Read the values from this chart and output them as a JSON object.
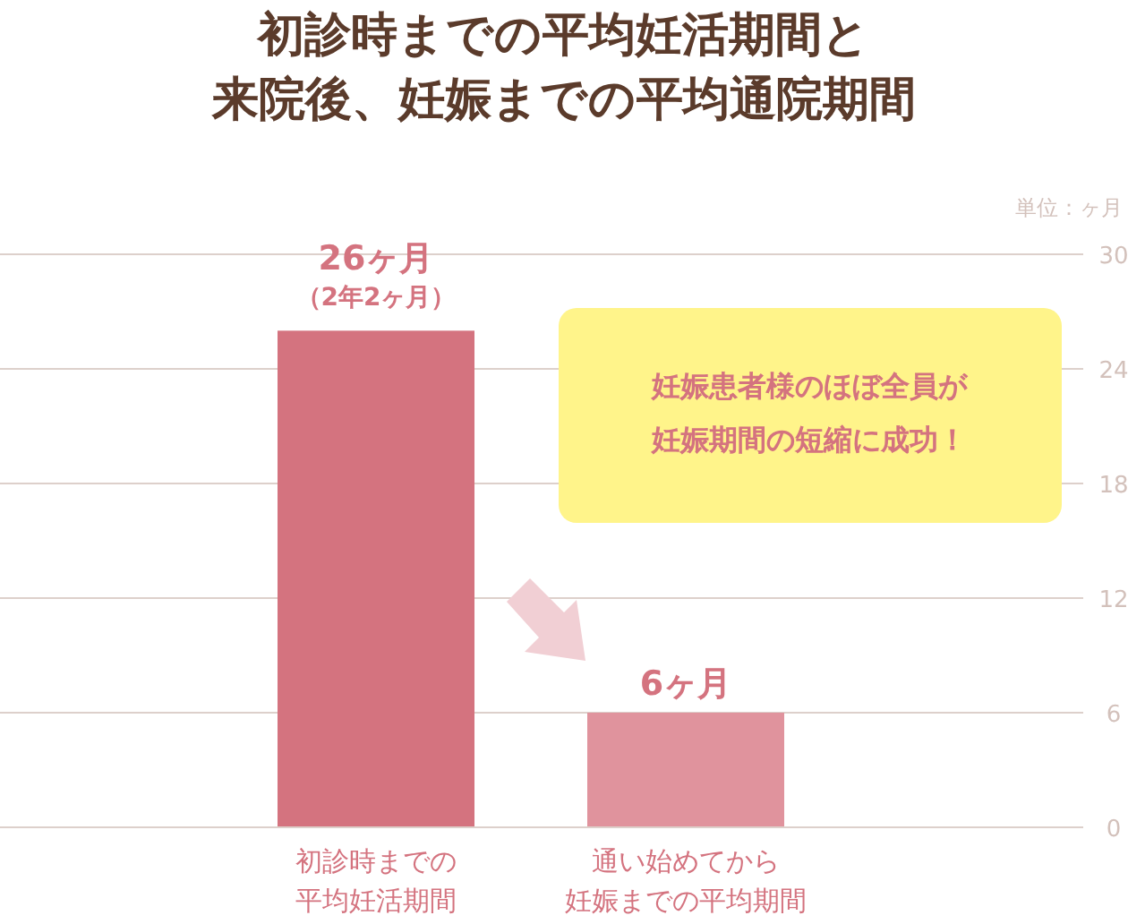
{
  "chart_data": {
    "type": "bar",
    "title": "初診時までの平均妊活期間と来院後、妊娠までの平均通院期間",
    "categories": [
      "初診時までの平均妊活期間",
      "通い始めてから妊娠までの平均期間"
    ],
    "values": [
      26,
      6
    ],
    "colors": [
      "#d4737f",
      "#e0939d"
    ],
    "value_labels": [
      "26ヶ月",
      "6ヶ月"
    ],
    "ylim": [
      0,
      30
    ],
    "yticks": [
      0,
      6,
      12,
      18,
      24,
      30
    ],
    "grid": "y",
    "annotations": [
      {
        "text": "（2年2ヶ月）",
        "x": "初診時までの平均妊活期間",
        "y": 26
      },
      "単位：ヶ月",
      "妊娠患者様のほぼ全員が妊娠期間の短縮に成功！"
    ]
  }
}
